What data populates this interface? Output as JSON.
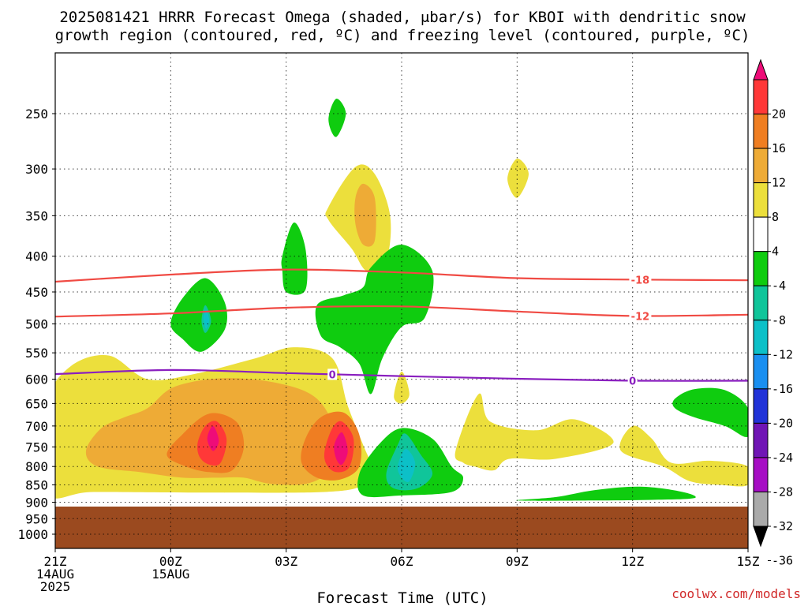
{
  "title": {
    "line1": "2025081421 HRRR Forecast Omega (shaded, μbar/s) for KBOI with dendritic snow",
    "line2": "growth region (contoured, red, ºC) and freezing level (contoured, purple, ºC)"
  },
  "xlabel": "Forecast Time (UTC)",
  "credit": "coolwx.com/models",
  "chart_data": {
    "type": "time-height cross-section (filled contours)",
    "title": "2025081421 HRRR Forecast Omega (shaded, μbar/s) for KBOI with dendritic snow growth region (contoured, red, ºC) and freezing level (contoured, purple, ºC)",
    "xlabel": "Forecast Time (UTC)",
    "ylabel": "",
    "x_unit": "hours from 2025-08-14 21Z",
    "xlim": [
      0,
      18
    ],
    "y_unit": "hPa",
    "ylim": [
      1000,
      200
    ],
    "y_scale": "log",
    "x_ticks": [
      {
        "x": 0,
        "lines": [
          "21Z",
          "14AUG",
          "2025"
        ]
      },
      {
        "x": 3,
        "lines": [
          "00Z",
          "15AUG"
        ]
      },
      {
        "x": 6,
        "lines": [
          "03Z"
        ]
      },
      {
        "x": 9,
        "lines": [
          "06Z"
        ]
      },
      {
        "x": 12,
        "lines": [
          "09Z"
        ]
      },
      {
        "x": 15,
        "lines": [
          "12Z"
        ]
      },
      {
        "x": 18,
        "lines": [
          "15Z"
        ]
      }
    ],
    "y_ticks": [
      250,
      300,
      350,
      400,
      450,
      500,
      550,
      600,
      650,
      700,
      750,
      800,
      850,
      900,
      950,
      1000
    ],
    "grid": true,
    "ground_below_hPa": 913,
    "ground_color": "#9b4a1f",
    "colorbar": {
      "orientation": "vertical",
      "placement": "right",
      "labels": [
        20,
        16,
        12,
        8,
        4,
        -4,
        -8,
        -12,
        -16,
        -20,
        -24,
        -28,
        -32,
        -36
      ],
      "colors": [
        "#ee0c78",
        "#ff3838",
        "#ef7e22",
        "#eeab36",
        "#ecdf3c",
        "#ffffff",
        "#0fcc0f",
        "#10c59a",
        "#0cc0c8",
        "#1a8ff0",
        "#2133d8",
        "#7015b5",
        "#a60ec4",
        "#aaaaaa",
        "#000000"
      ]
    },
    "shaded_regions": [
      {
        "level": "4-8",
        "color": "#ecdf3c",
        "points": [
          [
            -0.2,
            650
          ],
          [
            0.4,
            575
          ],
          [
            1.4,
            555
          ],
          [
            2.4,
            600
          ],
          [
            3.6,
            590
          ],
          [
            5.2,
            560
          ],
          [
            6.2,
            540
          ],
          [
            7.2,
            560
          ],
          [
            7.6,
            655
          ],
          [
            8.0,
            745
          ],
          [
            8.2,
            800
          ],
          [
            8.0,
            850
          ],
          [
            7.0,
            870
          ],
          [
            4.0,
            872
          ],
          [
            1.0,
            870
          ],
          [
            -0.2,
            870
          ]
        ]
      },
      {
        "level": "8-12",
        "color": "#eeab36",
        "points": [
          [
            0.8,
            760
          ],
          [
            1.2,
            705
          ],
          [
            1.8,
            680
          ],
          [
            2.4,
            660
          ],
          [
            3.1,
            615
          ],
          [
            4.4,
            598
          ],
          [
            5.8,
            608
          ],
          [
            6.8,
            640
          ],
          [
            7.3,
            720
          ],
          [
            7.2,
            800
          ],
          [
            6.6,
            845
          ],
          [
            5.6,
            847
          ],
          [
            4.9,
            830
          ],
          [
            4.2,
            830
          ],
          [
            3.3,
            830
          ],
          [
            2.2,
            815
          ],
          [
            1.1,
            800
          ]
        ]
      },
      {
        "level": "12-16",
        "color": "#ef7e22",
        "points": [
          [
            2.9,
            770
          ],
          [
            3.3,
            720
          ],
          [
            4.0,
            672
          ],
          [
            4.7,
            690
          ],
          [
            4.9,
            750
          ],
          [
            4.6,
            810
          ],
          [
            4.0,
            815
          ],
          [
            3.4,
            800
          ]
        ]
      },
      {
        "level": "12-16",
        "color": "#ef7e22",
        "points": [
          [
            6.4,
            790
          ],
          [
            6.5,
            730
          ],
          [
            6.9,
            680
          ],
          [
            7.5,
            670
          ],
          [
            7.9,
            720
          ],
          [
            7.9,
            800
          ],
          [
            7.4,
            835
          ],
          [
            6.8,
            830
          ]
        ]
      },
      {
        "level": "16-20",
        "color": "#ff3838",
        "points": [
          [
            3.7,
            740
          ],
          [
            3.9,
            700
          ],
          [
            4.2,
            690
          ],
          [
            4.45,
            730
          ],
          [
            4.3,
            790
          ],
          [
            4.0,
            795
          ],
          [
            3.75,
            775
          ]
        ]
      },
      {
        "level": "16-20",
        "color": "#ff3838",
        "points": [
          [
            7.0,
            760
          ],
          [
            7.2,
            705
          ],
          [
            7.45,
            690
          ],
          [
            7.75,
            730
          ],
          [
            7.65,
            800
          ],
          [
            7.3,
            815
          ],
          [
            7.05,
            795
          ]
        ]
      },
      {
        "level": ">20",
        "color": "#ee0c78",
        "points": [
          [
            3.95,
            730
          ],
          [
            4.1,
            700
          ],
          [
            4.25,
            735
          ],
          [
            4.1,
            760
          ]
        ]
      },
      {
        "level": ">20",
        "color": "#ee0c78",
        "points": [
          [
            7.25,
            745
          ],
          [
            7.45,
            715
          ],
          [
            7.6,
            760
          ],
          [
            7.45,
            795
          ],
          [
            7.3,
            780
          ]
        ]
      },
      {
        "level": "4-8",
        "color": "#ecdf3c",
        "points": [
          [
            7.1,
            340
          ],
          [
            7.8,
            298
          ],
          [
            8.3,
            305
          ],
          [
            8.7,
            350
          ],
          [
            8.6,
            405
          ],
          [
            8.1,
            420
          ],
          [
            7.7,
            390
          ],
          [
            7.1,
            355
          ]
        ]
      },
      {
        "level": "8-12",
        "color": "#eeab36",
        "points": [
          [
            7.8,
            330
          ],
          [
            8.0,
            315
          ],
          [
            8.3,
            330
          ],
          [
            8.3,
            380
          ],
          [
            8.0,
            385
          ],
          [
            7.8,
            360
          ]
        ]
      },
      {
        "level": "4-8",
        "color": "#ecdf3c",
        "points": [
          [
            11.75,
            310
          ],
          [
            12.0,
            290
          ],
          [
            12.3,
            305
          ],
          [
            12.0,
            330
          ]
        ]
      },
      {
        "level": "4-8",
        "color": "#ecdf3c",
        "points": [
          [
            8.8,
            635
          ],
          [
            9.0,
            585
          ],
          [
            9.2,
            630
          ],
          [
            9.0,
            650
          ]
        ]
      },
      {
        "level": "4-8",
        "color": "#ecdf3c",
        "points": [
          [
            10.4,
            760
          ],
          [
            11.0,
            630
          ],
          [
            11.3,
            690
          ],
          [
            12.5,
            710
          ],
          [
            13.5,
            685
          ],
          [
            14.5,
            740
          ],
          [
            13.0,
            780
          ],
          [
            11.8,
            780
          ],
          [
            11.4,
            810
          ],
          [
            10.9,
            800
          ],
          [
            10.6,
            790
          ]
        ]
      },
      {
        "level": "4-8",
        "color": "#ecdf3c",
        "points": [
          [
            14.7,
            760
          ],
          [
            15.0,
            700
          ],
          [
            15.5,
            730
          ],
          [
            16.0,
            790
          ],
          [
            17.0,
            785
          ],
          [
            18.0,
            800
          ],
          [
            18.0,
            850
          ],
          [
            17.3,
            850
          ],
          [
            16.5,
            840
          ],
          [
            15.8,
            800
          ]
        ]
      },
      {
        "level": "-4--8",
        "color": "#0fcc0f",
        "points": [
          [
            5.9,
            400
          ],
          [
            6.2,
            358
          ],
          [
            6.5,
            390
          ],
          [
            6.5,
            447
          ],
          [
            6.0,
            450
          ],
          [
            5.9,
            420
          ]
        ]
      },
      {
        "level": "-4--8",
        "color": "#0fcc0f",
        "points": [
          [
            6.8,
            470
          ],
          [
            7.5,
            455
          ],
          [
            8.0,
            443
          ],
          [
            8.2,
            415
          ],
          [
            9.0,
            385
          ],
          [
            9.8,
            420
          ],
          [
            9.6,
            490
          ],
          [
            9.0,
            505
          ],
          [
            8.5,
            560
          ],
          [
            8.2,
            630
          ],
          [
            7.9,
            570
          ],
          [
            7.4,
            540
          ],
          [
            6.9,
            520
          ]
        ]
      },
      {
        "level": "-4--8",
        "color": "#0fcc0f",
        "points": [
          [
            3.0,
            500
          ],
          [
            3.3,
            460
          ],
          [
            3.9,
            430
          ],
          [
            4.4,
            465
          ],
          [
            4.4,
            510
          ],
          [
            3.8,
            548
          ],
          [
            3.3,
            525
          ]
        ]
      },
      {
        "level": "-8--12",
        "color": "#10c59a",
        "points": [
          [
            3.8,
            495
          ],
          [
            3.9,
            470
          ],
          [
            4.05,
            495
          ],
          [
            3.9,
            515
          ]
        ]
      },
      {
        "level": "-12--16",
        "color": "#0cc0c8",
        "points": [
          [
            3.85,
            490
          ],
          [
            3.92,
            478
          ],
          [
            4.0,
            493
          ],
          [
            3.92,
            508
          ]
        ]
      },
      {
        "level": "-4--8",
        "color": "#0fcc0f",
        "points": [
          [
            7.9,
            820
          ],
          [
            8.4,
            745
          ],
          [
            9.0,
            705
          ],
          [
            9.8,
            730
          ],
          [
            10.3,
            800
          ],
          [
            10.6,
            830
          ],
          [
            10.3,
            870
          ],
          [
            9.0,
            880
          ],
          [
            8.0,
            880
          ]
        ]
      },
      {
        "level": "-8--12",
        "color": "#10c59a",
        "points": [
          [
            8.6,
            820
          ],
          [
            8.9,
            745
          ],
          [
            9.1,
            718
          ],
          [
            9.5,
            770
          ],
          [
            9.8,
            820
          ],
          [
            9.4,
            860
          ],
          [
            8.8,
            860
          ]
        ]
      },
      {
        "level": "-12--16",
        "color": "#0cc0c8",
        "points": [
          [
            8.9,
            800
          ],
          [
            9.1,
            755
          ],
          [
            9.35,
            790
          ],
          [
            9.2,
            840
          ],
          [
            9.0,
            830
          ]
        ]
      },
      {
        "level": "-4--8",
        "color": "#0fcc0f",
        "points": [
          [
            12.0,
            895
          ],
          [
            13.0,
            885
          ],
          [
            14.0,
            865
          ],
          [
            15.2,
            855
          ],
          [
            16.3,
            870
          ],
          [
            16.6,
            888
          ],
          [
            15.5,
            893
          ],
          [
            14.0,
            895
          ]
        ]
      },
      {
        "level": "-4--8",
        "color": "#0fcc0f",
        "points": [
          [
            16.1,
            640
          ],
          [
            16.6,
            620
          ],
          [
            17.4,
            622
          ],
          [
            18.0,
            660
          ],
          [
            18.0,
            725
          ],
          [
            17.4,
            700
          ],
          [
            16.6,
            680
          ],
          [
            16.1,
            660
          ]
        ]
      },
      {
        "level": "-4--8",
        "color": "#0fcc0f",
        "points": [
          [
            7.1,
            255
          ],
          [
            7.3,
            238
          ],
          [
            7.55,
            250
          ],
          [
            7.3,
            270
          ]
        ]
      }
    ],
    "contour_lines": [
      {
        "name": "-18",
        "color": "#f04a43",
        "label": "-18",
        "label_at_x": 15.2,
        "points": [
          [
            0,
            435
          ],
          [
            3,
            425
          ],
          [
            6,
            418
          ],
          [
            9,
            422
          ],
          [
            12,
            430
          ],
          [
            15,
            432
          ],
          [
            18,
            433
          ]
        ]
      },
      {
        "name": "-12",
        "color": "#f04a43",
        "label": "-12",
        "label_at_x": 15.2,
        "points": [
          [
            0,
            488
          ],
          [
            3,
            483
          ],
          [
            6,
            474
          ],
          [
            9,
            472
          ],
          [
            12,
            480
          ],
          [
            15,
            487
          ],
          [
            18,
            485
          ]
        ]
      },
      {
        "name": "0",
        "color": "#8a1fbf",
        "label": "0",
        "label_at_xs": [
          7.2,
          15.0
        ],
        "points": [
          [
            0,
            590
          ],
          [
            3,
            582
          ],
          [
            6,
            588
          ],
          [
            9,
            594
          ],
          [
            12,
            599
          ],
          [
            15,
            603
          ],
          [
            18,
            603
          ]
        ]
      }
    ]
  }
}
